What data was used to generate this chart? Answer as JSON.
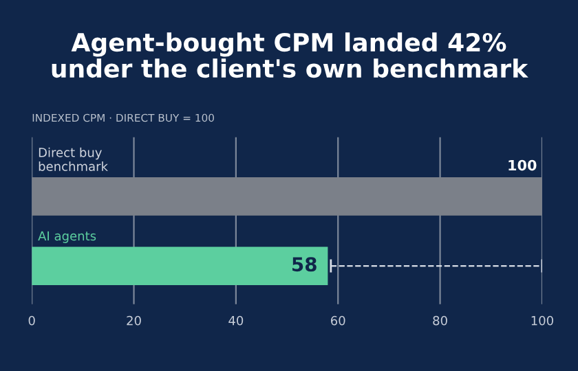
{
  "chart_data": {
    "type": "bar",
    "orientation": "horizontal",
    "title": "Agent-bought CPM landed 42%\nunder the client's own benchmark",
    "subtitle": "INDEXED CPM · DIRECT BUY = 100",
    "categories": [
      "Direct buy\nbenchmark",
      "AI agents"
    ],
    "values": [
      100,
      58
    ],
    "colors": [
      "#7b8089",
      "#5ccf9f"
    ],
    "xlim": [
      0,
      100
    ],
    "xticks": [
      0,
      20,
      40,
      60,
      80,
      100
    ],
    "grid": "x",
    "data_labels": true
  }
}
